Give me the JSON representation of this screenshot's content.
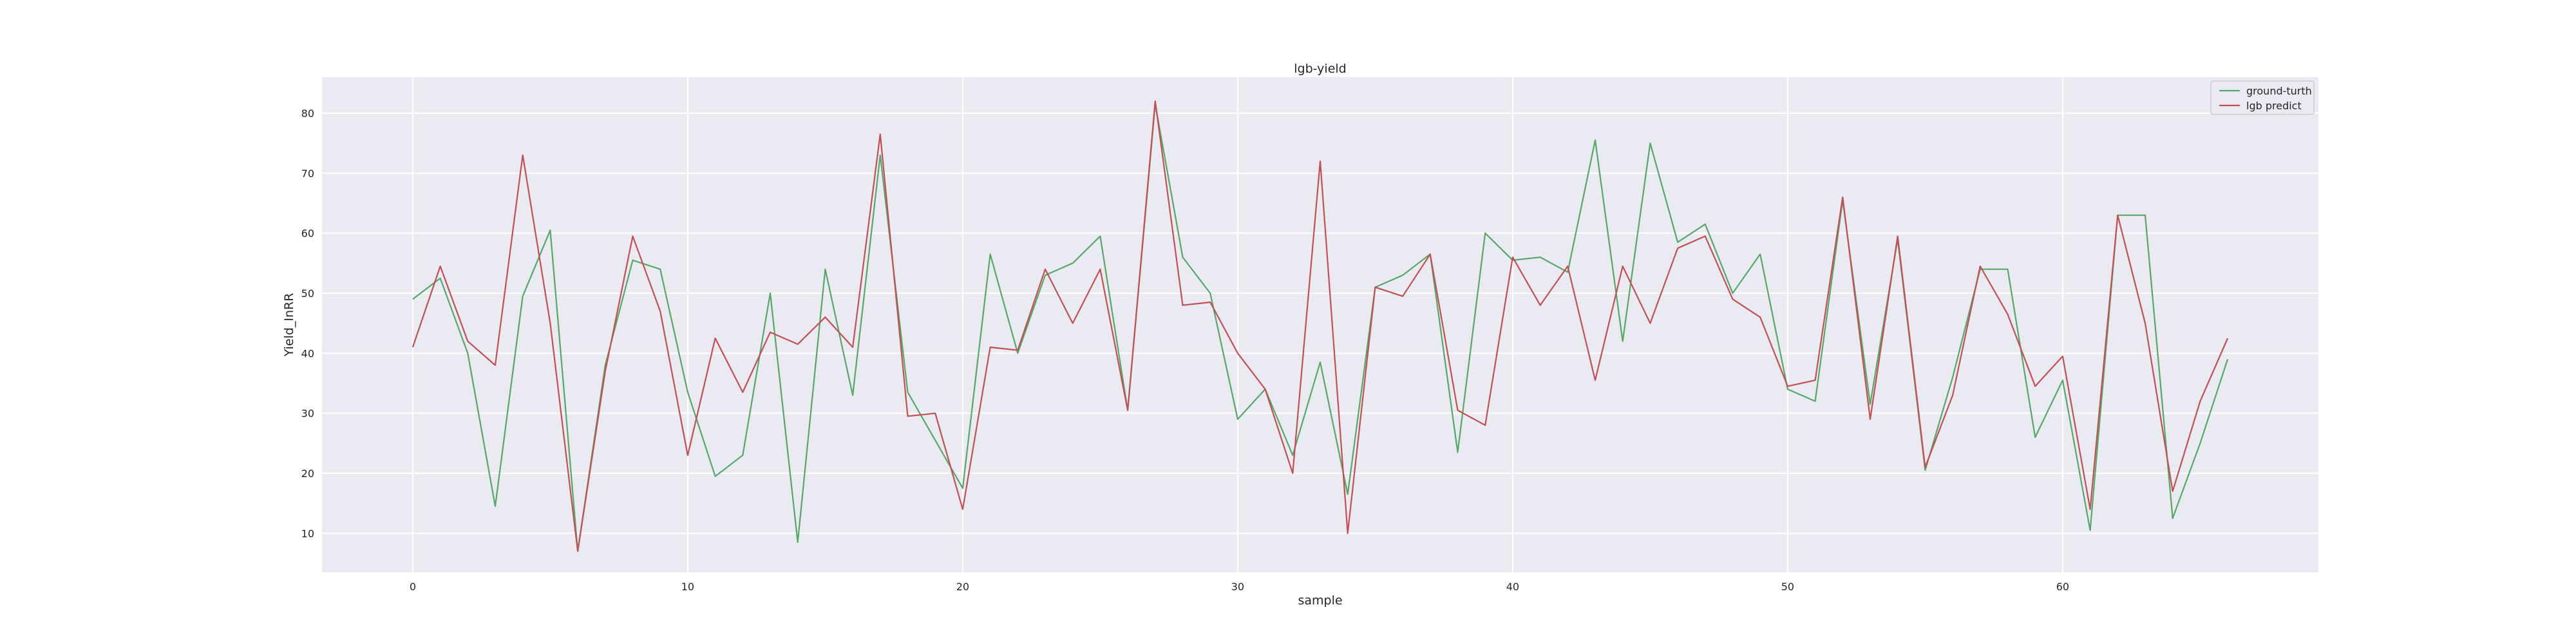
{
  "chart_data": {
    "type": "line",
    "title": "lgb-yield",
    "xlabel": "sample",
    "ylabel": "Yield_InRR",
    "xlim": [
      -3.3,
      69.3
    ],
    "ylim": [
      3.5,
      86
    ],
    "xticks": [
      "0",
      "10",
      "20",
      "30",
      "40",
      "50",
      "60"
    ],
    "yticks": [
      "10",
      "20",
      "30",
      "40",
      "50",
      "60",
      "70",
      "80"
    ],
    "grid": true,
    "legend_position": "top-right",
    "series": [
      {
        "name": "ground-turth",
        "color": "#55a868",
        "values": [
          49,
          52.5,
          40,
          14.5,
          49.5,
          60.5,
          7,
          38,
          55.5,
          54,
          33.5,
          19.5,
          23,
          50,
          8.5,
          54,
          33,
          73,
          33.5,
          25.5,
          17.5,
          56.5,
          40,
          53,
          55,
          59.5,
          30.5,
          81.5,
          56,
          50,
          29,
          34,
          23,
          38.5,
          16.5,
          51,
          53,
          56.5,
          23.5,
          60,
          55.5,
          56,
          53.5,
          75.5,
          42,
          75,
          58.5,
          61.5,
          50,
          56.5,
          34,
          32,
          65.5,
          31.5,
          59,
          20.5,
          36,
          54,
          54,
          26,
          35.5,
          10.5,
          63,
          63,
          12.5,
          25,
          39
        ]
      },
      {
        "name": "lgb predict",
        "color": "#c44e52",
        "values": [
          41,
          54.5,
          42,
          38,
          73,
          45,
          7,
          37,
          59.5,
          47,
          23,
          42.5,
          33.5,
          43.5,
          41.5,
          46,
          41,
          76.5,
          29.5,
          30,
          14,
          41,
          40.5,
          54,
          45,
          54,
          30.5,
          82,
          48,
          48.5,
          40,
          34,
          20,
          72,
          10,
          51,
          49.5,
          56.5,
          30.5,
          28,
          56,
          48,
          54.5,
          35.5,
          54.5,
          45,
          57.5,
          59.5,
          49,
          46,
          34.5,
          35.5,
          66,
          29,
          59.5,
          21,
          33,
          54.5,
          46.5,
          34.5,
          39.5,
          14,
          63,
          45,
          17,
          32,
          42.5
        ]
      }
    ]
  }
}
